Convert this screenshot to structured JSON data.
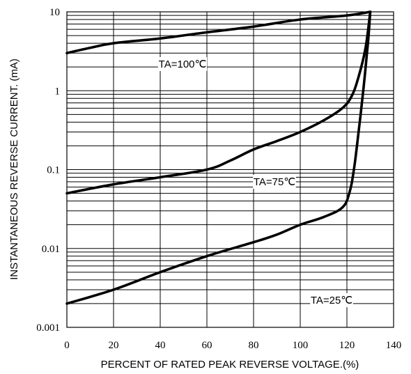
{
  "chart_data": {
    "type": "line",
    "title": "",
    "xlabel": "PERCENT OF RATED PEAK REVERSE VOLTAGE.(%)",
    "ylabel": "INSTANTANEOUS REVERSE CURRENT. (mA)",
    "xlim": [
      0,
      140
    ],
    "ylim": [
      0.001,
      10
    ],
    "yscale": "log",
    "x_ticks": [
      "0",
      "20",
      "40",
      "60",
      "80",
      "100",
      "120",
      "140"
    ],
    "y_ticks": [
      "0.001",
      "0.01",
      "0.1",
      "1",
      "10"
    ],
    "grid": true,
    "series": [
      {
        "name": "TA=100℃",
        "points": [
          [
            0,
            3.0
          ],
          [
            10,
            3.5
          ],
          [
            20,
            4.0
          ],
          [
            40,
            4.6
          ],
          [
            60,
            5.5
          ],
          [
            80,
            6.5
          ],
          [
            100,
            8.0
          ],
          [
            120,
            9.0
          ],
          [
            130,
            10.0
          ]
        ]
      },
      {
        "name": "TA=75℃",
        "points": [
          [
            0,
            0.05
          ],
          [
            20,
            0.065
          ],
          [
            40,
            0.08
          ],
          [
            60,
            0.1
          ],
          [
            70,
            0.13
          ],
          [
            80,
            0.18
          ],
          [
            90,
            0.23
          ],
          [
            100,
            0.3
          ],
          [
            110,
            0.42
          ],
          [
            118,
            0.6
          ],
          [
            122,
            0.85
          ],
          [
            125,
            1.5
          ],
          [
            128,
            3.5
          ],
          [
            130,
            10.0
          ]
        ]
      },
      {
        "name": "TA=25℃",
        "points": [
          [
            0,
            0.002
          ],
          [
            20,
            0.003
          ],
          [
            40,
            0.005
          ],
          [
            60,
            0.008
          ],
          [
            80,
            0.012
          ],
          [
            90,
            0.015
          ],
          [
            100,
            0.02
          ],
          [
            110,
            0.025
          ],
          [
            118,
            0.033
          ],
          [
            121,
            0.05
          ],
          [
            123,
            0.1
          ],
          [
            125,
            0.3
          ],
          [
            127,
            1.0
          ],
          [
            129,
            4.0
          ],
          [
            130,
            10.0
          ]
        ]
      }
    ]
  }
}
